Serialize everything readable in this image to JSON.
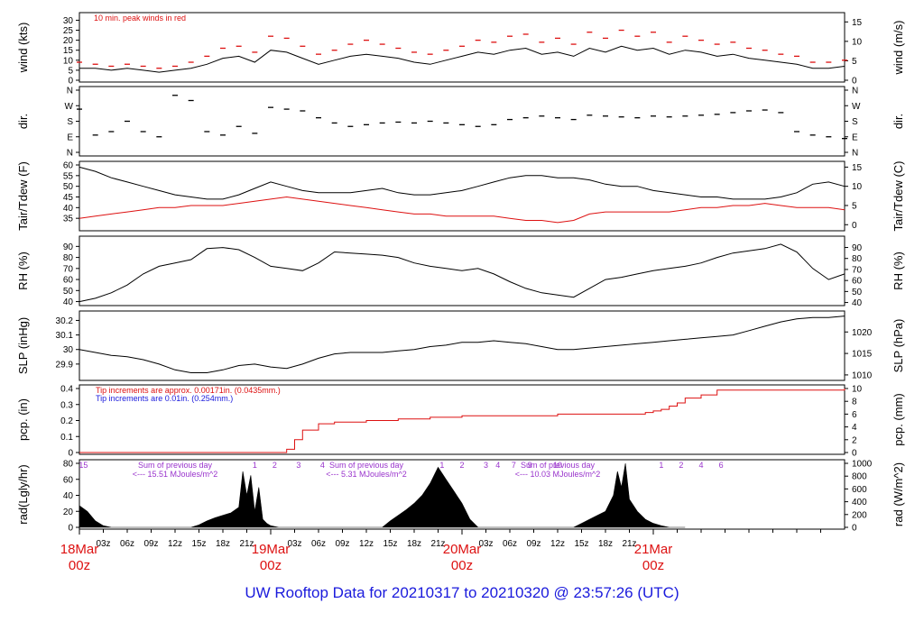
{
  "footer_title": "UW Rooftop Data for 20210317  to  20210320 @ 23:57:26  (UTC)",
  "colors": {
    "black": "#000000",
    "red": "#dd1111",
    "blue": "#1a1adc",
    "purple": "#9933cc"
  },
  "chart_data": [
    {
      "type": "line",
      "ylabel": "wind (kts)",
      "ylabel_right": "wind (m/s)",
      "ylim": [
        0,
        32
      ],
      "yticks": [
        0,
        5,
        10,
        15,
        20,
        25,
        30
      ],
      "yticks_right": [
        0,
        5,
        10,
        15
      ],
      "annotation": "10 min. peak winds in red",
      "series": [
        {
          "name": "",
          "color": "#000000",
          "style": "line",
          "x": [
            0,
            2,
            4,
            6,
            8,
            10,
            12,
            14,
            16,
            18,
            20,
            22,
            24,
            26,
            28,
            30,
            32,
            34,
            36,
            38,
            40,
            42,
            44,
            46,
            48,
            50,
            52,
            54,
            56,
            58,
            60,
            62,
            64,
            66,
            68,
            70,
            72,
            74,
            76,
            78,
            80,
            82,
            84,
            86,
            88,
            90,
            92,
            94,
            96
          ],
          "y": [
            6,
            6,
            5,
            6,
            5,
            4,
            5,
            6,
            8,
            11,
            12,
            9,
            15,
            14,
            11,
            8,
            10,
            12,
            13,
            12,
            11,
            9,
            8,
            10,
            12,
            14,
            13,
            15,
            16,
            13,
            14,
            12,
            16,
            14,
            17,
            15,
            16,
            13,
            15,
            14,
            12,
            13,
            11,
            10,
            9,
            8,
            6,
            6,
            7
          ]
        },
        {
          "name": "10 min. peak winds",
          "color": "#dd1111",
          "style": "dash",
          "x": [
            0,
            2,
            4,
            6,
            8,
            10,
            12,
            14,
            16,
            18,
            20,
            22,
            24,
            26,
            28,
            30,
            32,
            34,
            36,
            38,
            40,
            42,
            44,
            46,
            48,
            50,
            52,
            54,
            56,
            58,
            60,
            62,
            64,
            66,
            68,
            70,
            72,
            74,
            76,
            78,
            80,
            82,
            84,
            86,
            88,
            90,
            92,
            94,
            96
          ],
          "y": [
            9,
            8,
            7,
            8,
            7,
            6,
            7,
            9,
            12,
            16,
            17,
            14,
            22,
            21,
            17,
            13,
            15,
            18,
            20,
            18,
            16,
            14,
            13,
            15,
            17,
            20,
            19,
            22,
            23,
            19,
            21,
            18,
            24,
            21,
            25,
            22,
            24,
            19,
            22,
            20,
            18,
            19,
            16,
            15,
            13,
            12,
            9,
            9,
            10
          ]
        }
      ]
    },
    {
      "type": "scatter",
      "ylabel": "dir.",
      "ylabel_right": "dir.",
      "yticks": [
        "N",
        "E",
        "S",
        "W",
        "N"
      ],
      "yticks_right": [
        "N",
        "E",
        "S",
        "W",
        "N"
      ],
      "series": [
        {
          "name": "",
          "color": "#000000",
          "style": "dash",
          "x": [
            0,
            2,
            4,
            6,
            8,
            10,
            12,
            14,
            16,
            18,
            20,
            22,
            24,
            26,
            28,
            30,
            32,
            34,
            36,
            38,
            40,
            42,
            44,
            46,
            48,
            50,
            52,
            54,
            56,
            58,
            60,
            62,
            64,
            66,
            68,
            70,
            72,
            74,
            76,
            78,
            80,
            82,
            84,
            86,
            88,
            90,
            92,
            94,
            96
          ],
          "y": [
            250,
            100,
            120,
            180,
            120,
            90,
            330,
            300,
            120,
            100,
            150,
            110,
            260,
            250,
            240,
            200,
            170,
            150,
            160,
            170,
            175,
            170,
            180,
            170,
            160,
            150,
            160,
            190,
            200,
            210,
            200,
            190,
            215,
            210,
            205,
            200,
            210,
            205,
            210,
            215,
            220,
            230,
            240,
            245,
            230,
            120,
            100,
            90,
            80
          ]
        }
      ]
    },
    {
      "type": "line",
      "ylabel": "Tair/Tdew (F)",
      "ylabel_right": "Tair/Tdew (C)",
      "ylim": [
        30,
        60
      ],
      "yticks": [
        35,
        40,
        45,
        50,
        55,
        60
      ],
      "yticks_right": [
        0,
        5,
        10,
        15
      ],
      "series": [
        {
          "name": "",
          "color": "#000000",
          "style": "line",
          "x": [
            0,
            2,
            4,
            6,
            8,
            10,
            12,
            14,
            16,
            18,
            20,
            22,
            24,
            26,
            28,
            30,
            32,
            34,
            36,
            38,
            40,
            42,
            44,
            46,
            48,
            50,
            52,
            54,
            56,
            58,
            60,
            62,
            64,
            66,
            68,
            70,
            72,
            74,
            76,
            78,
            80,
            82,
            84,
            86,
            88,
            90,
            92,
            94,
            96
          ],
          "y": [
            59,
            57,
            54,
            52,
            50,
            48,
            46,
            45,
            44,
            44,
            46,
            49,
            52,
            50,
            48,
            47,
            47,
            47,
            48,
            49,
            47,
            46,
            46,
            47,
            48,
            50,
            52,
            54,
            55,
            55,
            54,
            54,
            53,
            51,
            50,
            50,
            48,
            47,
            46,
            45,
            45,
            44,
            44,
            44,
            45,
            47,
            51,
            52,
            50
          ]
        },
        {
          "name": "",
          "color": "#dd1111",
          "style": "line",
          "x": [
            0,
            2,
            4,
            6,
            8,
            10,
            12,
            14,
            16,
            18,
            20,
            22,
            24,
            26,
            28,
            30,
            32,
            34,
            36,
            38,
            40,
            42,
            44,
            46,
            48,
            50,
            52,
            54,
            56,
            58,
            60,
            62,
            64,
            66,
            68,
            70,
            72,
            74,
            76,
            78,
            80,
            82,
            84,
            86,
            88,
            90,
            92,
            94,
            96
          ],
          "y": [
            35,
            36,
            37,
            38,
            39,
            40,
            40,
            41,
            41,
            41,
            42,
            43,
            44,
            45,
            44,
            43,
            42,
            41,
            40,
            39,
            38,
            37,
            37,
            36,
            36,
            36,
            36,
            35,
            34,
            34,
            33,
            34,
            37,
            38,
            38,
            38,
            38,
            38,
            39,
            40,
            40,
            41,
            41,
            42,
            41,
            40,
            40,
            40,
            39
          ]
        }
      ]
    },
    {
      "type": "line",
      "ylabel": "RH (%)",
      "ylabel_right": "RH (%)",
      "ylim": [
        38,
        96
      ],
      "yticks": [
        40,
        50,
        60,
        70,
        80,
        90
      ],
      "yticks_right": [
        40,
        50,
        60,
        70,
        80,
        90
      ],
      "series": [
        {
          "name": "",
          "color": "#000000",
          "style": "line",
          "x": [
            0,
            2,
            4,
            6,
            8,
            10,
            12,
            14,
            16,
            18,
            20,
            22,
            24,
            26,
            28,
            30,
            32,
            34,
            36,
            38,
            40,
            42,
            44,
            46,
            48,
            50,
            52,
            54,
            56,
            58,
            60,
            62,
            64,
            66,
            68,
            70,
            72,
            74,
            76,
            78,
            80,
            82,
            84,
            86,
            88,
            90,
            92,
            94,
            96
          ],
          "y": [
            40,
            43,
            48,
            55,
            65,
            72,
            75,
            78,
            88,
            89,
            87,
            80,
            72,
            70,
            68,
            75,
            85,
            84,
            83,
            82,
            80,
            75,
            72,
            70,
            68,
            70,
            65,
            58,
            52,
            48,
            46,
            44,
            52,
            60,
            62,
            65,
            68,
            70,
            72,
            75,
            80,
            84,
            86,
            88,
            92,
            85,
            70,
            60,
            65
          ]
        }
      ]
    },
    {
      "type": "line",
      "ylabel": "SLP (inHg)",
      "ylabel_right": "SLP (hPa)",
      "ylim": [
        29.8,
        30.24
      ],
      "yticks": [
        29.9,
        30.0,
        30.1,
        30.2
      ],
      "yticks_right": [
        1010,
        1015,
        1020
      ],
      "series": [
        {
          "name": "",
          "color": "#000000",
          "style": "line",
          "x": [
            0,
            2,
            4,
            6,
            8,
            10,
            12,
            14,
            16,
            18,
            20,
            22,
            24,
            26,
            28,
            30,
            32,
            34,
            36,
            38,
            40,
            42,
            44,
            46,
            48,
            50,
            52,
            54,
            56,
            58,
            60,
            62,
            64,
            66,
            68,
            70,
            72,
            74,
            76,
            78,
            80,
            82,
            84,
            86,
            88,
            90,
            92,
            94,
            96
          ],
          "y": [
            30.0,
            29.98,
            29.96,
            29.95,
            29.93,
            29.9,
            29.86,
            29.84,
            29.84,
            29.86,
            29.89,
            29.9,
            29.88,
            29.87,
            29.9,
            29.94,
            29.97,
            29.98,
            29.98,
            29.98,
            29.99,
            30.0,
            30.02,
            30.03,
            30.05,
            30.05,
            30.06,
            30.05,
            30.04,
            30.02,
            30.0,
            30.0,
            30.01,
            30.02,
            30.03,
            30.04,
            30.05,
            30.06,
            30.07,
            30.08,
            30.09,
            30.1,
            30.13,
            30.16,
            30.19,
            30.21,
            30.22,
            30.22,
            30.23
          ]
        }
      ]
    },
    {
      "type": "line",
      "ylabel": "pcp. (in)",
      "ylabel_right": "pcp. (mm)",
      "ylim": [
        0,
        0.4
      ],
      "yticks": [
        0.0,
        0.1,
        0.2,
        0.3,
        0.4
      ],
      "yticks_right": [
        0,
        2,
        4,
        6,
        8,
        10
      ],
      "annotations": [
        "Tip increments are approx. 0.00171in. (0.0435mm.)",
        "Tip increments are 0.01in. (0.254mm.)"
      ],
      "series": [
        {
          "name": "",
          "color": "#dd1111",
          "style": "step",
          "x": [
            0,
            24,
            26,
            27,
            28,
            30,
            32,
            36,
            40,
            44,
            48,
            56,
            60,
            64,
            66,
            68,
            70,
            71,
            72,
            73,
            74,
            75,
            76,
            78,
            80,
            96
          ],
          "y": [
            0,
            0,
            0.02,
            0.08,
            0.14,
            0.18,
            0.19,
            0.2,
            0.21,
            0.22,
            0.23,
            0.23,
            0.24,
            0.24,
            0.24,
            0.24,
            0.24,
            0.25,
            0.26,
            0.27,
            0.29,
            0.31,
            0.34,
            0.36,
            0.39,
            0.4
          ]
        }
      ]
    },
    {
      "type": "area",
      "ylabel": "rad(Lgly/hr)",
      "ylabel_right": "rad (W/m^2)",
      "ylim": [
        0,
        80
      ],
      "yticks": [
        0,
        20,
        40,
        60,
        80
      ],
      "yticks_right": [
        0,
        200,
        400,
        600,
        800,
        1000
      ],
      "x_ticks": [
        "03z",
        "06z",
        "09z",
        "12z",
        "15z",
        "18z",
        "21z",
        "03z",
        "06z",
        "09z",
        "12z",
        "15z",
        "18z",
        "21z",
        "03z",
        "06z",
        "09z",
        "12z",
        "15z",
        "18z",
        "21z"
      ],
      "day_ticks": [
        "18Mar",
        "19Mar",
        "20Mar",
        "21Mar"
      ],
      "day_sub": "00z",
      "hour_digits": [
        "15",
        "1",
        "2",
        "3",
        "4",
        "1",
        "2",
        "3",
        "4",
        "7",
        "9",
        "10",
        "1",
        "2",
        "4",
        "6"
      ],
      "daily_notes": [
        {
          "title": "Sum of previous day",
          "value": "<--- 15.51 MJoules/m^2"
        },
        {
          "title": "Sum of previous day",
          "value": "<--- 5.31 MJoules/m^2"
        },
        {
          "title": "Sum of previous day",
          "value": "<--- 10.03 MJoules/m^2"
        }
      ],
      "series": [
        {
          "name": "",
          "color": "#000000",
          "style": "fill",
          "x": [
            0,
            1,
            2,
            3,
            4,
            12,
            14,
            15,
            16,
            17,
            18,
            19,
            20,
            20.5,
            21,
            21.5,
            22,
            22.5,
            23,
            23.5,
            24,
            25,
            36,
            38,
            39,
            40,
            41,
            42,
            43,
            44,
            45,
            46,
            47,
            48,
            48.5,
            49,
            50,
            60,
            62,
            63,
            64,
            65,
            66,
            66.5,
            67,
            67.5,
            68,
            68.5,
            69,
            70,
            71,
            72,
            73,
            74,
            75,
            76
          ],
          "y": [
            27,
            20,
            8,
            2,
            0,
            0,
            0,
            3,
            8,
            12,
            15,
            18,
            25,
            70,
            40,
            65,
            20,
            50,
            10,
            5,
            2,
            0,
            0,
            0,
            8,
            15,
            22,
            30,
            40,
            55,
            75,
            60,
            45,
            30,
            20,
            10,
            0,
            0,
            0,
            5,
            10,
            15,
            20,
            30,
            40,
            70,
            50,
            80,
            35,
            20,
            10,
            5,
            2,
            0,
            0,
            0
          ]
        }
      ]
    }
  ]
}
